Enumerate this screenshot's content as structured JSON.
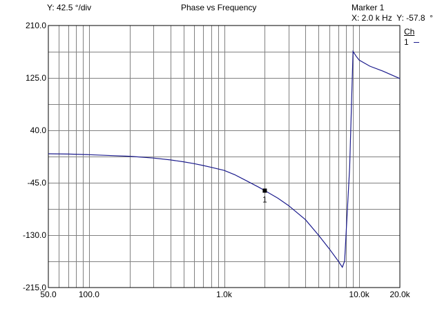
{
  "header": {
    "ydiv_label": "Y: 42.5 °/div",
    "title": "Phase vs Frequency",
    "marker_title": "Marker 1",
    "marker_readout": "X: 2.0 k Hz  Y: -57.8  °"
  },
  "legend": {
    "header": "Ch",
    "channel": "1"
  },
  "colors": {
    "trace": "#1a1a8c",
    "grid": "#808080",
    "axes": "#000000",
    "background": "#ffffff"
  },
  "chart_data": {
    "type": "line",
    "title": "Phase vs Frequency",
    "x_scale": "log",
    "xlim": [
      50,
      20000
    ],
    "ylim": [
      -215,
      210
    ],
    "grid": true,
    "x_tick_labels": [
      {
        "value": 50,
        "label": "50.0"
      },
      {
        "value": 100,
        "label": "100.0"
      },
      {
        "value": 1000,
        "label": "1.0k"
      },
      {
        "value": 10000,
        "label": "10.0k"
      },
      {
        "value": 20000,
        "label": "20.0k"
      }
    ],
    "y_tick_labels": [
      {
        "value": 210,
        "label": "210.0"
      },
      {
        "value": 125,
        "label": "125.0"
      },
      {
        "value": 40,
        "label": "40.0"
      },
      {
        "value": -45,
        "label": "-45.0"
      },
      {
        "value": -130,
        "label": "-130.0"
      },
      {
        "value": -215,
        "label": "-215.0"
      }
    ],
    "series": [
      {
        "name": "1",
        "x": [
          50,
          70,
          100,
          150,
          200,
          300,
          400,
          500,
          600,
          700,
          800,
          1000,
          1200,
          1500,
          1800,
          2000,
          2500,
          3000,
          4000,
          5000,
          6000,
          7000,
          7500,
          7800,
          8500,
          9000,
          9500,
          10000,
          12000,
          15000,
          20000
        ],
        "y": [
          2,
          1.5,
          0.5,
          -1,
          -2,
          -5,
          -8,
          -11,
          -14,
          -17,
          -20,
          -25,
          -32,
          -43,
          -52,
          -57.8,
          -70,
          -82,
          -105,
          -130,
          -152,
          -172,
          -182,
          -172,
          -20,
          168,
          160,
          154,
          144,
          136,
          124
        ]
      }
    ],
    "marker": {
      "label": "1",
      "x": 2000,
      "y": -57.8
    }
  }
}
